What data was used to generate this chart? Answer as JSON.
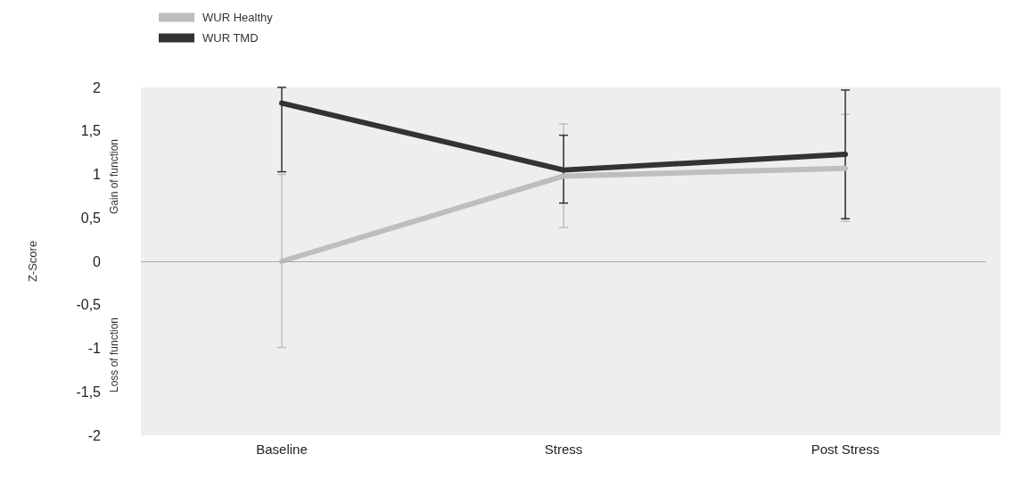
{
  "chart_data": {
    "type": "line",
    "categories": [
      "Baseline",
      "Stress",
      "Post Stress"
    ],
    "series": [
      {
        "name": "WUR Healthy",
        "color": "#bebebe",
        "values": [
          0,
          0.98,
          1.07
        ],
        "errors": [
          [
            -0.99,
            1.0
          ],
          [
            0.39,
            1.58
          ],
          [
            0.46,
            1.69
          ]
        ]
      },
      {
        "name": "WUR TMD",
        "color": "#333333",
        "values": [
          1.82,
          1.05,
          1.23
        ],
        "errors": [
          [
            1.03,
            2.0
          ],
          [
            0.67,
            1.45
          ],
          [
            0.49,
            1.97
          ]
        ]
      }
    ],
    "ylabel": "Z-Score",
    "annotations": [
      "Gain of function",
      "Loss of function"
    ],
    "ylim": [
      -2,
      2
    ],
    "yticks": [
      {
        "value": -2,
        "label": "-2"
      },
      {
        "value": -1.5,
        "label": "-1,5"
      },
      {
        "value": -1,
        "label": "-1"
      },
      {
        "value": -0.5,
        "label": "-0,5"
      },
      {
        "value": 0,
        "label": "0"
      },
      {
        "value": 0.5,
        "label": "0,5"
      },
      {
        "value": 1,
        "label": "1"
      },
      {
        "value": 1.5,
        "label": "1,5"
      },
      {
        "value": 2,
        "label": "2"
      }
    ],
    "ref_lines": [
      {
        "axis": "y",
        "value": 0,
        "color": "#aaaaaa"
      }
    ],
    "legend": "top left",
    "marker": "none",
    "line_style": "solid",
    "grid": false
  }
}
